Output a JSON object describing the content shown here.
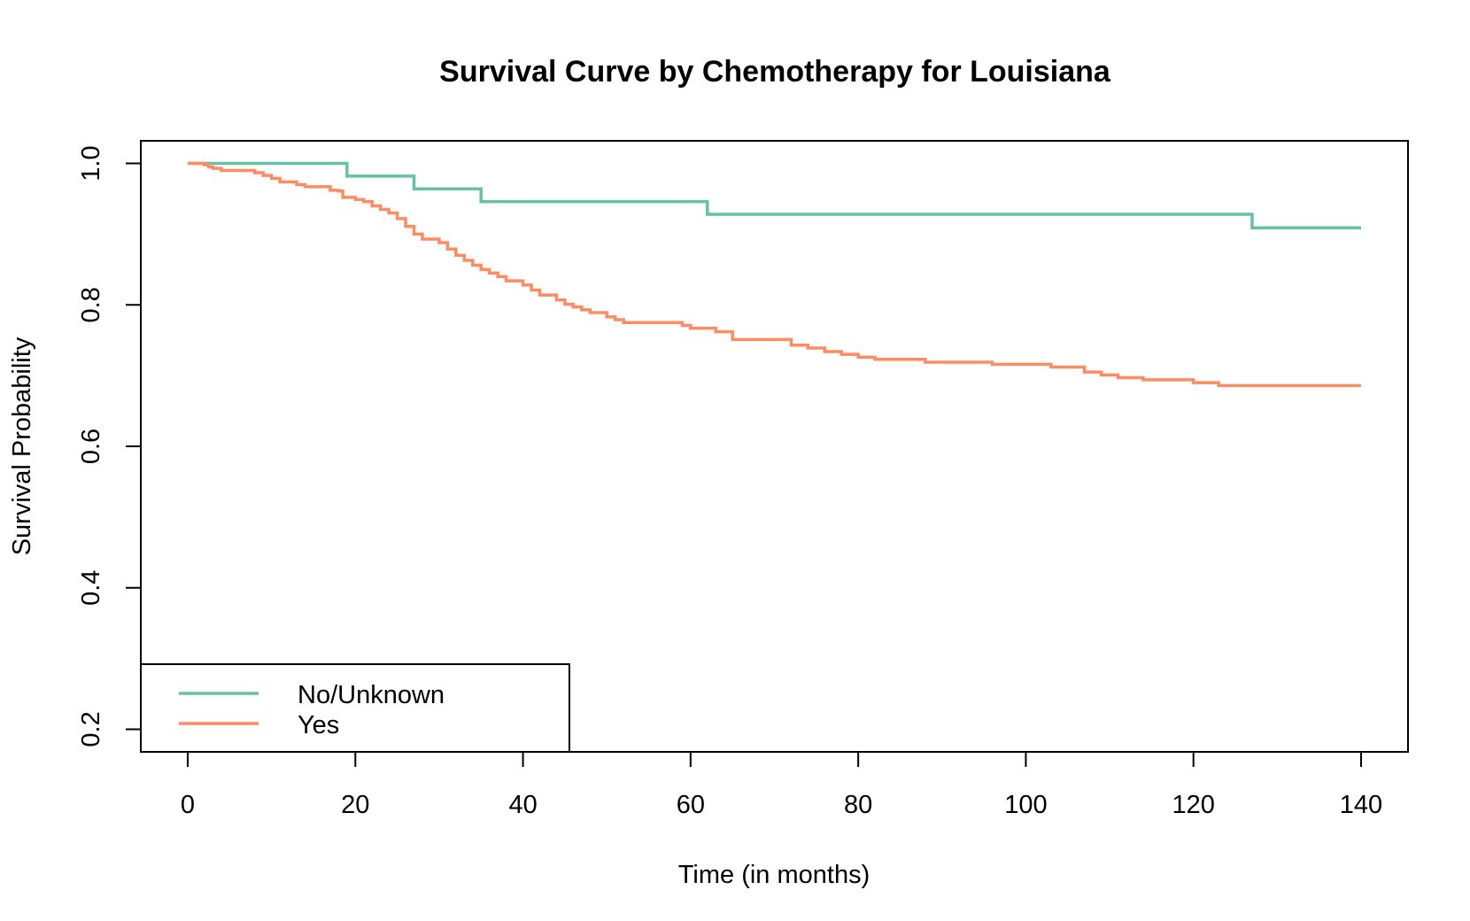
{
  "chart_data": {
    "type": "line",
    "step": true,
    "title": "Survival Curve by Chemotherapy for Louisiana",
    "xlabel": "Time (in months)",
    "ylabel": "Survival Probability",
    "xlim": [
      -5.6,
      145.6
    ],
    "ylim": [
      0.168,
      1.032
    ],
    "x_ticks": [
      0,
      20,
      40,
      60,
      80,
      100,
      120,
      140
    ],
    "y_ticks": [
      0.2,
      0.4,
      0.6,
      0.8,
      1.0
    ],
    "x_tick_labels": [
      "0",
      "20",
      "40",
      "60",
      "80",
      "100",
      "120",
      "140"
    ],
    "y_tick_labels": [
      "0.2",
      "0.4",
      "0.6",
      "0.8",
      "1.0"
    ],
    "grid": false,
    "legend_position": "bottom-left",
    "series": [
      {
        "name": "No/Unknown",
        "color": "#66c2a5",
        "points": [
          [
            0,
            1.0
          ],
          [
            19,
            0.982
          ],
          [
            27,
            0.964
          ],
          [
            35,
            0.946
          ],
          [
            62,
            0.928
          ],
          [
            127,
            0.909
          ],
          [
            140,
            0.909
          ]
        ]
      },
      {
        "name": "Yes",
        "color": "#fc8d62",
        "points": [
          [
            0,
            1.0
          ],
          [
            2,
            0.998
          ],
          [
            2.5,
            0.995
          ],
          [
            3,
            0.993
          ],
          [
            4,
            0.99
          ],
          [
            8,
            0.987
          ],
          [
            9,
            0.983
          ],
          [
            10,
            0.979
          ],
          [
            11,
            0.974
          ],
          [
            13,
            0.97
          ],
          [
            14,
            0.967
          ],
          [
            16,
            0.967
          ],
          [
            17,
            0.962
          ],
          [
            18,
            0.961
          ],
          [
            18.5,
            0.952
          ],
          [
            20,
            0.949
          ],
          [
            21,
            0.946
          ],
          [
            22,
            0.94
          ],
          [
            23,
            0.935
          ],
          [
            24,
            0.93
          ],
          [
            25,
            0.922
          ],
          [
            26,
            0.911
          ],
          [
            27,
            0.9
          ],
          [
            28,
            0.893
          ],
          [
            30,
            0.888
          ],
          [
            31,
            0.879
          ],
          [
            32,
            0.87
          ],
          [
            33,
            0.863
          ],
          [
            34,
            0.856
          ],
          [
            35,
            0.85
          ],
          [
            36,
            0.845
          ],
          [
            37,
            0.84
          ],
          [
            38,
            0.834
          ],
          [
            40,
            0.828
          ],
          [
            41,
            0.821
          ],
          [
            42,
            0.814
          ],
          [
            44,
            0.807
          ],
          [
            45,
            0.801
          ],
          [
            46,
            0.797
          ],
          [
            47,
            0.793
          ],
          [
            48,
            0.789
          ],
          [
            50,
            0.783
          ],
          [
            51,
            0.779
          ],
          [
            52,
            0.775
          ],
          [
            59,
            0.771
          ],
          [
            60,
            0.767
          ],
          [
            63,
            0.762
          ],
          [
            65,
            0.751
          ],
          [
            72,
            0.743
          ],
          [
            74,
            0.739
          ],
          [
            76,
            0.734
          ],
          [
            78,
            0.73
          ],
          [
            80,
            0.726
          ],
          [
            82,
            0.723
          ],
          [
            88,
            0.719
          ],
          [
            96,
            0.716
          ],
          [
            103,
            0.712
          ],
          [
            107,
            0.705
          ],
          [
            109,
            0.701
          ],
          [
            111,
            0.697
          ],
          [
            114,
            0.694
          ],
          [
            120,
            0.69
          ],
          [
            123,
            0.686
          ],
          [
            140,
            0.686
          ]
        ]
      }
    ]
  }
}
